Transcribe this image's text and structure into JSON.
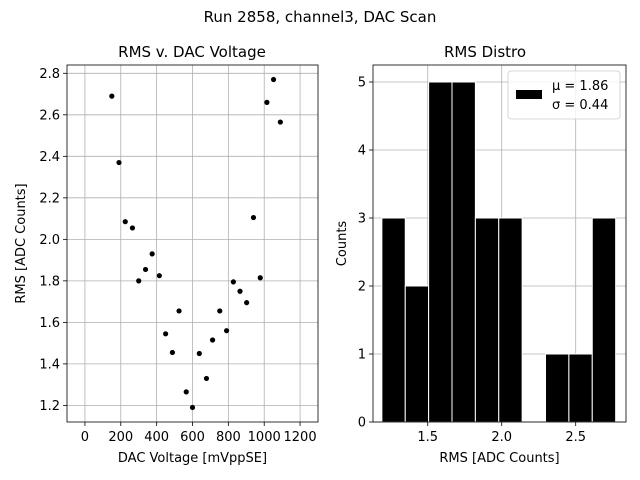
{
  "suptitle": "Run 2858, channel3, DAC Scan",
  "chart_data": [
    {
      "type": "scatter",
      "title": "RMS v. DAC Voltage",
      "xlabel": "DAC Voltage [mVppSE]",
      "ylabel": "RMS [ADC Counts]",
      "xlim": [
        -100,
        1300
      ],
      "ylim": [
        1.12,
        2.84
      ],
      "xticks": [
        0,
        200,
        400,
        600,
        800,
        1000,
        1200
      ],
      "yticks": [
        1.2,
        1.4,
        1.6,
        1.8,
        2.0,
        2.2,
        2.4,
        2.6,
        2.8
      ],
      "ytick_labels": [
        "1.2",
        "1.4",
        "1.6",
        "1.8",
        "2.0",
        "2.2",
        "2.4",
        "2.6",
        "2.8"
      ],
      "grid": true,
      "color": "#000000",
      "points": [
        {
          "x": 150,
          "y": 2.69
        },
        {
          "x": 190,
          "y": 2.37
        },
        {
          "x": 225,
          "y": 2.085
        },
        {
          "x": 265,
          "y": 2.055
        },
        {
          "x": 300,
          "y": 1.8
        },
        {
          "x": 338,
          "y": 1.855
        },
        {
          "x": 375,
          "y": 1.93
        },
        {
          "x": 415,
          "y": 1.825
        },
        {
          "x": 450,
          "y": 1.545
        },
        {
          "x": 488,
          "y": 1.455
        },
        {
          "x": 525,
          "y": 1.655
        },
        {
          "x": 565,
          "y": 1.265
        },
        {
          "x": 600,
          "y": 1.19
        },
        {
          "x": 638,
          "y": 1.45
        },
        {
          "x": 678,
          "y": 1.33
        },
        {
          "x": 712,
          "y": 1.515
        },
        {
          "x": 752,
          "y": 1.655
        },
        {
          "x": 790,
          "y": 1.56
        },
        {
          "x": 828,
          "y": 1.795
        },
        {
          "x": 865,
          "y": 1.75
        },
        {
          "x": 902,
          "y": 1.695
        },
        {
          "x": 940,
          "y": 2.105
        },
        {
          "x": 978,
          "y": 1.815
        },
        {
          "x": 1015,
          "y": 2.66
        },
        {
          "x": 1052,
          "y": 2.77
        },
        {
          "x": 1090,
          "y": 2.565
        }
      ]
    },
    {
      "type": "bar",
      "subtype": "histogram",
      "title": "RMS Distro",
      "xlabel": "RMS [ADC Counts]",
      "ylabel": "Counts",
      "xlim": [
        1.13,
        2.84
      ],
      "ylim": [
        0,
        5.25
      ],
      "xticks": [
        1.5,
        2.0,
        2.5
      ],
      "xtick_labels": [
        "1.5",
        "2.0",
        "2.5"
      ],
      "yticks": [
        0,
        1,
        2,
        3,
        4,
        5
      ],
      "grid": true,
      "color": "#000000",
      "edgecolor": "#ffffff",
      "bins": [
        {
          "x0": 1.19,
          "x1": 1.348,
          "count": 3
        },
        {
          "x0": 1.348,
          "x1": 1.506,
          "count": 2
        },
        {
          "x0": 1.506,
          "x1": 1.664,
          "count": 5
        },
        {
          "x0": 1.664,
          "x1": 1.822,
          "count": 5
        },
        {
          "x0": 1.822,
          "x1": 1.98,
          "count": 3
        },
        {
          "x0": 1.98,
          "x1": 2.138,
          "count": 3
        },
        {
          "x0": 2.138,
          "x1": 2.296,
          "count": 0
        },
        {
          "x0": 2.296,
          "x1": 2.454,
          "count": 1
        },
        {
          "x0": 2.454,
          "x1": 2.612,
          "count": 1
        },
        {
          "x0": 2.612,
          "x1": 2.77,
          "count": 3
        }
      ],
      "legend": {
        "placement": "top-right",
        "lines": [
          "μ = 1.86",
          "σ = 0.44"
        ]
      }
    }
  ]
}
